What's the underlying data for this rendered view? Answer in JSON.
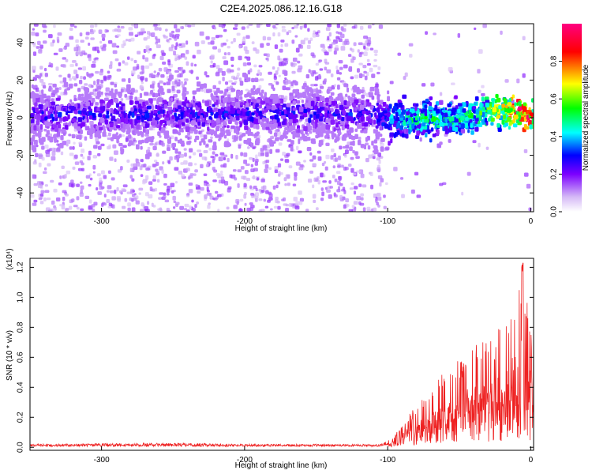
{
  "title": "C2E4.2025.086.12.16.G18",
  "chart_data": [
    {
      "type": "heatmap",
      "title": "C2E4.2025.086.12.16.G18",
      "xlabel": "Height of straight line (km)",
      "ylabel": "Frequency (Hz)",
      "xlim": [
        -350,
        2
      ],
      "ylim": [
        -50,
        50
      ],
      "x_ticks": [
        "-300",
        "-200",
        "-100",
        "0"
      ],
      "y_ticks": [
        "40",
        "20",
        "0",
        "-20",
        "-40"
      ],
      "colorbar": {
        "label": "Normalized spectral amplitude",
        "range": [
          0,
          1
        ],
        "ticks": [
          "0.0",
          "0.2",
          "0.4",
          "0.6",
          "0.8"
        ],
        "colormap": "rainbow",
        "colors": [
          "#ffffff",
          "#d4b8f6",
          "#7c00ff",
          "#0000ff",
          "#00ffff",
          "#00ff00",
          "#ffff00",
          "#ff0000",
          "#ff0080"
        ]
      },
      "ridge": {
        "x": [
          -350,
          -300,
          -250,
          -200,
          -150,
          -110,
          -100,
          -80,
          -60,
          -40,
          -20,
          -10,
          -5,
          0,
          2
        ],
        "y": [
          2,
          2,
          2,
          2,
          2,
          2,
          0,
          -1,
          0,
          1,
          5,
          4,
          2,
          1,
          1
        ],
        "amplitude": [
          0.3,
          0.3,
          0.3,
          0.3,
          0.3,
          0.3,
          0.4,
          0.5,
          0.5,
          0.5,
          0.7,
          0.9,
          0.95,
          0.9,
          0.6
        ]
      }
    },
    {
      "type": "line",
      "xlabel": "Height of straight line (km)",
      "ylabel": "SNR (10 * v/v)",
      "y_multiplier": "(x10⁴)",
      "xlim": [
        -350,
        2
      ],
      "ylim": [
        -0.02,
        1.26
      ],
      "x_ticks": [
        "-300",
        "-200",
        "-100",
        "0"
      ],
      "y_ticks": [
        "0.0",
        "0.2",
        "0.4",
        "0.6",
        "0.8",
        "1.0",
        "1.2"
      ],
      "series": [
        {
          "color": "#ee2222",
          "envelope_x": [
            -350,
            -250,
            -200,
            -150,
            -105,
            -95,
            -90,
            -80,
            -70,
            -60,
            -50,
            -40,
            -30,
            -20,
            -10,
            -5,
            0,
            2
          ],
          "envelope_y": [
            0.02,
            0.03,
            0.02,
            0.02,
            0.02,
            0.08,
            0.16,
            0.28,
            0.38,
            0.52,
            0.58,
            0.7,
            0.7,
            0.82,
            1.12,
            1.25,
            0.85,
            0.9
          ]
        }
      ]
    }
  ]
}
